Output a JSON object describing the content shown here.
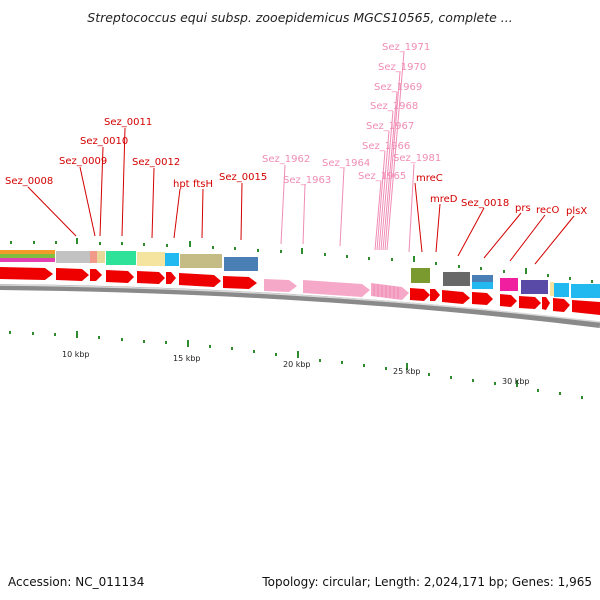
{
  "title": "Streptococcus equi subsp. zooepidemicus MGCS10565, complete ...",
  "accession": "Accession: NC_011134",
  "summary": "Topology: circular; Length: 2,024,171 bp; Genes: 1,965",
  "colors": {
    "label_red": "#d40000",
    "label_pink": "#f08cb4",
    "gene_red": "#ee0000",
    "gene_pink": "#f6a8c8",
    "backbone": "#888888",
    "tick_green": "#2e8b2e"
  },
  "scale_labels": [
    "10 kbp",
    "15 kbp",
    "20 kbp",
    "25 kbp",
    "30 kbp"
  ],
  "gene_labels": [
    {
      "text": "Sez_0008",
      "color": "red"
    },
    {
      "text": "Sez_0009",
      "color": "red"
    },
    {
      "text": "Sez_0010",
      "color": "red"
    },
    {
      "text": "Sez_0011",
      "color": "red"
    },
    {
      "text": "Sez_0012",
      "color": "red"
    },
    {
      "text": "hpt",
      "color": "red"
    },
    {
      "text": "ftsH",
      "color": "red"
    },
    {
      "text": "Sez_0015",
      "color": "red"
    },
    {
      "text": "Sez_1962",
      "color": "pink"
    },
    {
      "text": "Sez_1963",
      "color": "pink"
    },
    {
      "text": "Sez_1964",
      "color": "pink"
    },
    {
      "text": "Sez_1965",
      "color": "pink"
    },
    {
      "text": "Sez_1966",
      "color": "pink"
    },
    {
      "text": "Sez_1967",
      "color": "pink"
    },
    {
      "text": "Sez_1968",
      "color": "pink"
    },
    {
      "text": "Sez_1969",
      "color": "pink"
    },
    {
      "text": "Sez_1970",
      "color": "pink"
    },
    {
      "text": "Sez_1971",
      "color": "pink"
    },
    {
      "text": "Sez_1981",
      "color": "pink"
    },
    {
      "text": "mreC",
      "color": "red"
    },
    {
      "text": "mreD",
      "color": "red"
    },
    {
      "text": "Sez_0018",
      "color": "red"
    },
    {
      "text": "prs",
      "color": "red"
    },
    {
      "text": "recO",
      "color": "red"
    },
    {
      "text": "plsX",
      "color": "red"
    }
  ]
}
